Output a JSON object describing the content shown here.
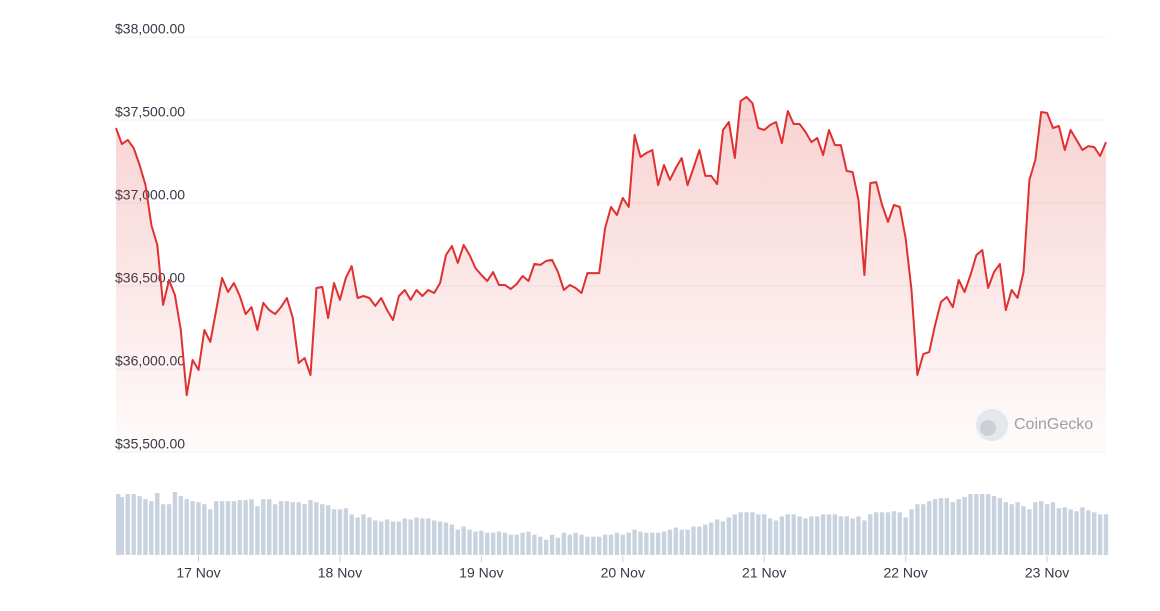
{
  "chart_data": [
    {
      "type": "line",
      "x": [
        -14,
        -13,
        -12,
        -11,
        -10,
        -9,
        -8,
        -7,
        -6,
        -5,
        -4,
        -3,
        -2,
        -1,
        0,
        1,
        2,
        3,
        4,
        5,
        6,
        7,
        8,
        9,
        10,
        11,
        12,
        13,
        14,
        15,
        16,
        17,
        18,
        19,
        20,
        21,
        22,
        23,
        24,
        25,
        26,
        27,
        28,
        29,
        30,
        31,
        32,
        33,
        34,
        35,
        36,
        37,
        38,
        39,
        40,
        41,
        42,
        43,
        44,
        45,
        46,
        47,
        48,
        49,
        50,
        51,
        52,
        53,
        54,
        55,
        56,
        57,
        58,
        59,
        60,
        61,
        62,
        63,
        64,
        65,
        66,
        67,
        68,
        69,
        70,
        71,
        72,
        73,
        74,
        75,
        76,
        77,
        78,
        79,
        80,
        81,
        82,
        83,
        84,
        85,
        86,
        87,
        88,
        89,
        90,
        91,
        92,
        93,
        94,
        95,
        96,
        97,
        98,
        99,
        100,
        101,
        102,
        103,
        104,
        105,
        106,
        107,
        108,
        109,
        110,
        111,
        112,
        113,
        114,
        115,
        116,
        117,
        118,
        119,
        120,
        121,
        122,
        123,
        124,
        125,
        126,
        127,
        128,
        129,
        130,
        131,
        132,
        133,
        134,
        135,
        136,
        137,
        138,
        139,
        140,
        141,
        142,
        143,
        144,
        145,
        146,
        147,
        148,
        149,
        150,
        151,
        152,
        153,
        154
      ],
      "series": [
        {
          "color": "#e03131",
          "values": [
            37452,
            37355,
            37380,
            37331,
            37229,
            37108,
            36867,
            36747,
            36386,
            36536,
            36446,
            36235,
            35843,
            36054,
            35994,
            36235,
            36163,
            36355,
            36548,
            36464,
            36518,
            36440,
            36331,
            36373,
            36235,
            36398,
            36355,
            36331,
            36373,
            36428,
            36307,
            36036,
            36066,
            35964,
            36488,
            36494,
            36307,
            36518,
            36416,
            36548,
            36620,
            36428,
            36440,
            36428,
            36380,
            36428,
            36355,
            36295,
            36440,
            36476,
            36416,
            36476,
            36440,
            36476,
            36458,
            36518,
            36687,
            36741,
            36639,
            36747,
            36687,
            36608,
            36566,
            36530,
            36584,
            36506,
            36506,
            36482,
            36512,
            36560,
            36530,
            36633,
            36627,
            36651,
            36657,
            36584,
            36476,
            36506,
            36488,
            36458,
            36578,
            36578,
            36578,
            36849,
            36976,
            36928,
            37030,
            36976,
            37410,
            37277,
            37301,
            37319,
            37108,
            37229,
            37139,
            37211,
            37271,
            37108,
            37211,
            37319,
            37163,
            37163,
            37114,
            37440,
            37488,
            37271,
            37614,
            37639,
            37602,
            37452,
            37440,
            37470,
            37488,
            37361,
            37554,
            37476,
            37476,
            37428,
            37367,
            37392,
            37289,
            37440,
            37349,
            37349,
            37193,
            37187,
            37018,
            36566,
            37120,
            37126,
            36988,
            36886,
            36988,
            36976,
            36789,
            36476,
            35964,
            36090,
            36102,
            36265,
            36404,
            36434,
            36373,
            36536,
            36464,
            36566,
            36687,
            36717,
            36488,
            36584,
            36633,
            36355,
            36476,
            36428,
            36584,
            37139,
            37259,
            37548,
            37542,
            37452,
            37464,
            37319,
            37440,
            37380,
            37319,
            37343,
            37337,
            37283,
            37367
          ]
        }
      ],
      "xlim": [
        -14,
        154
      ],
      "xticks": [
        {
          "value": 0,
          "label": "17 Nov"
        },
        {
          "value": 24,
          "label": "18 Nov"
        },
        {
          "value": 48,
          "label": "19 Nov"
        },
        {
          "value": 72,
          "label": "20 Nov"
        },
        {
          "value": 96,
          "label": "21 Nov"
        },
        {
          "value": 120,
          "label": "22 Nov"
        },
        {
          "value": 144,
          "label": "23 Nov"
        }
      ],
      "ylim": [
        35500,
        38000
      ],
      "yticks": [
        {
          "value": 35500,
          "label": "$35,500.00"
        },
        {
          "value": 36000,
          "label": "$36,000.00"
        },
        {
          "value": 36500,
          "label": "$36,500.00"
        },
        {
          "value": 37000,
          "label": "$37,000.00"
        },
        {
          "value": 37500,
          "label": "$37,500.00"
        },
        {
          "value": 38000,
          "label": "$38,000.00"
        }
      ],
      "grid": true,
      "watermark": "CoinGecko"
    },
    {
      "type": "bar",
      "color": "#c9d3e0",
      "values": [
        60,
        57,
        60,
        60,
        58,
        55,
        53,
        61,
        50,
        50,
        62,
        58,
        55,
        53,
        52,
        50,
        45,
        53,
        53,
        53,
        53,
        54,
        54,
        55,
        48,
        55,
        55,
        50,
        53,
        53,
        52,
        52,
        50,
        54,
        52,
        50,
        49,
        45,
        45,
        46,
        40,
        37,
        40,
        37,
        34,
        33,
        35,
        33,
        33,
        36,
        35,
        37,
        36,
        36,
        34,
        33,
        32,
        30,
        25,
        28,
        25,
        23,
        24,
        22,
        22,
        23,
        22,
        20,
        20,
        22,
        23,
        20,
        18,
        15,
        20,
        17,
        22,
        20,
        22,
        20,
        18,
        18,
        18,
        20,
        20,
        22,
        20,
        22,
        25,
        23,
        22,
        22,
        22,
        23,
        25,
        27,
        25,
        25,
        28,
        28,
        30,
        32,
        35,
        33,
        37,
        40,
        42,
        42,
        42,
        40,
        40,
        36,
        34,
        38,
        40,
        40,
        38,
        36,
        38,
        38,
        40,
        40,
        40,
        38,
        38,
        36,
        38,
        34,
        40,
        42,
        42,
        42,
        43,
        42,
        37,
        45,
        50,
        50,
        53,
        55,
        56,
        56,
        52,
        55,
        57,
        60,
        60,
        60,
        60,
        58,
        56,
        52,
        50,
        52,
        48,
        45,
        52,
        53,
        50,
        52,
        46,
        47,
        45,
        43,
        47,
        44,
        42,
        40,
        40
      ]
    }
  ]
}
